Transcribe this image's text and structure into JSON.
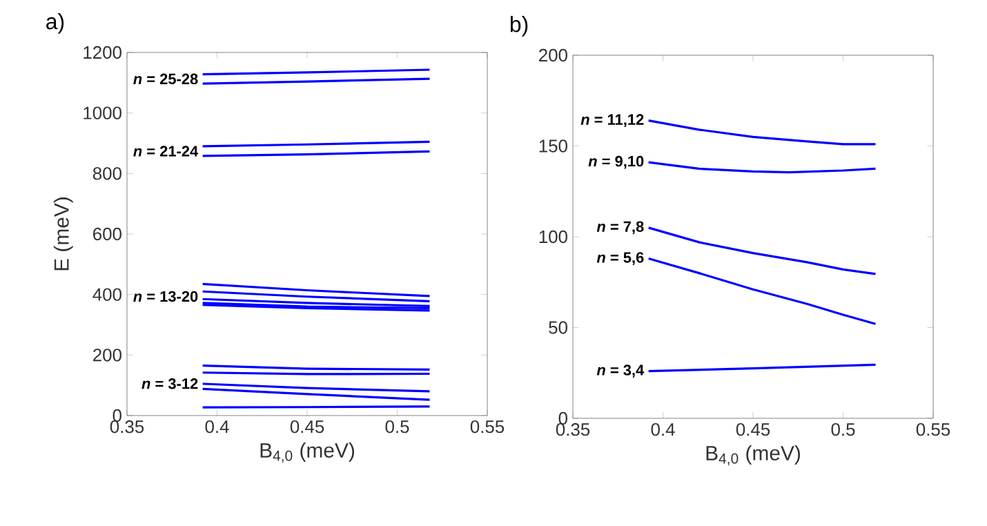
{
  "chart_data": [
    {
      "type": "line",
      "title": "a)",
      "xlabel": "B$_{4,0}$ (meV)",
      "ylabel": "E (meV)",
      "xlim": [
        0.35,
        0.55
      ],
      "xticks": [
        0.35,
        0.4,
        0.45,
        0.5,
        0.55
      ],
      "ylim": [
        0,
        1200
      ],
      "yticks": [
        0,
        200,
        400,
        600,
        800,
        1000,
        1200
      ],
      "series": [
        {
          "color": "#0000ff",
          "x": [
            0.392,
            0.45,
            0.518
          ],
          "values": [
            1128,
            1134,
            1143
          ]
        },
        {
          "color": "#0000ff",
          "x": [
            0.392,
            0.45,
            0.518
          ],
          "values": [
            1097,
            1104,
            1113
          ]
        },
        {
          "color": "#0000ff",
          "x": [
            0.392,
            0.45,
            0.518
          ],
          "values": [
            890,
            896,
            905
          ]
        },
        {
          "color": "#0000ff",
          "x": [
            0.392,
            0.45,
            0.518
          ],
          "values": [
            858,
            863,
            873
          ]
        },
        {
          "color": "#0000ff",
          "x": [
            0.392,
            0.45,
            0.518
          ],
          "values": [
            435,
            414,
            395
          ]
        },
        {
          "color": "#0000ff",
          "x": [
            0.392,
            0.45,
            0.518
          ],
          "values": [
            410,
            393,
            378
          ]
        },
        {
          "color": "#0000ff",
          "x": [
            0.392,
            0.45,
            0.518
          ],
          "values": [
            385,
            372,
            362
          ]
        },
        {
          "color": "#0000ff",
          "x": [
            0.392,
            0.45,
            0.518
          ],
          "values": [
            372,
            360,
            355
          ]
        },
        {
          "color": "#0000ff",
          "x": [
            0.392,
            0.45,
            0.518
          ],
          "values": [
            366,
            355,
            347
          ]
        },
        {
          "color": "#0000ff",
          "x": [
            0.392,
            0.45,
            0.518
          ],
          "values": [
            165,
            155,
            152
          ]
        },
        {
          "color": "#0000ff",
          "x": [
            0.392,
            0.45,
            0.518
          ],
          "values": [
            142,
            137,
            138
          ]
        },
        {
          "color": "#0000ff",
          "x": [
            0.392,
            0.45,
            0.518
          ],
          "values": [
            105,
            91,
            80
          ]
        },
        {
          "color": "#0000ff",
          "x": [
            0.392,
            0.45,
            0.518
          ],
          "values": [
            88,
            71,
            52
          ]
        },
        {
          "color": "#0000ff",
          "x": [
            0.392,
            0.45,
            0.518
          ],
          "values": [
            27,
            28,
            30
          ]
        }
      ],
      "annotations": [
        "*n* = 25-28",
        "*n* = 21-24",
        "*n* = 13-20",
        "*n* = 3-12"
      ]
    },
    {
      "type": "line",
      "title": "b)",
      "xlabel": "B$_{4,0}$ (meV)",
      "xlim": [
        0.35,
        0.55
      ],
      "xticks": [
        0.35,
        0.4,
        0.45,
        0.5,
        0.55
      ],
      "ylim": [
        0,
        200
      ],
      "yticks": [
        0,
        50,
        100,
        150,
        200
      ],
      "series": [
        {
          "color": "#0000ff",
          "x": [
            0.392,
            0.42,
            0.45,
            0.48,
            0.5,
            0.518
          ],
          "values": [
            164,
            159,
            155,
            152.5,
            151,
            151
          ]
        },
        {
          "color": "#0000ff",
          "x": [
            0.392,
            0.42,
            0.45,
            0.47,
            0.5,
            0.518
          ],
          "values": [
            141,
            137.5,
            136,
            135.5,
            136.5,
            137.5
          ]
        },
        {
          "color": "#0000ff",
          "x": [
            0.392,
            0.42,
            0.45,
            0.48,
            0.5,
            0.518
          ],
          "values": [
            105,
            97,
            91,
            86,
            82,
            79.5
          ]
        },
        {
          "color": "#0000ff",
          "x": [
            0.392,
            0.42,
            0.45,
            0.48,
            0.5,
            0.518
          ],
          "values": [
            88,
            80,
            71,
            63,
            57,
            52
          ]
        },
        {
          "color": "#0000ff",
          "x": [
            0.392,
            0.45,
            0.518
          ],
          "values": [
            26,
            27.5,
            29.5
          ]
        }
      ],
      "annotations": [
        "*n* = 11,12",
        "*n* = 9,10",
        "*n* = 7,8",
        "*n* = 5,6",
        "*n* = 3,4"
      ]
    }
  ]
}
